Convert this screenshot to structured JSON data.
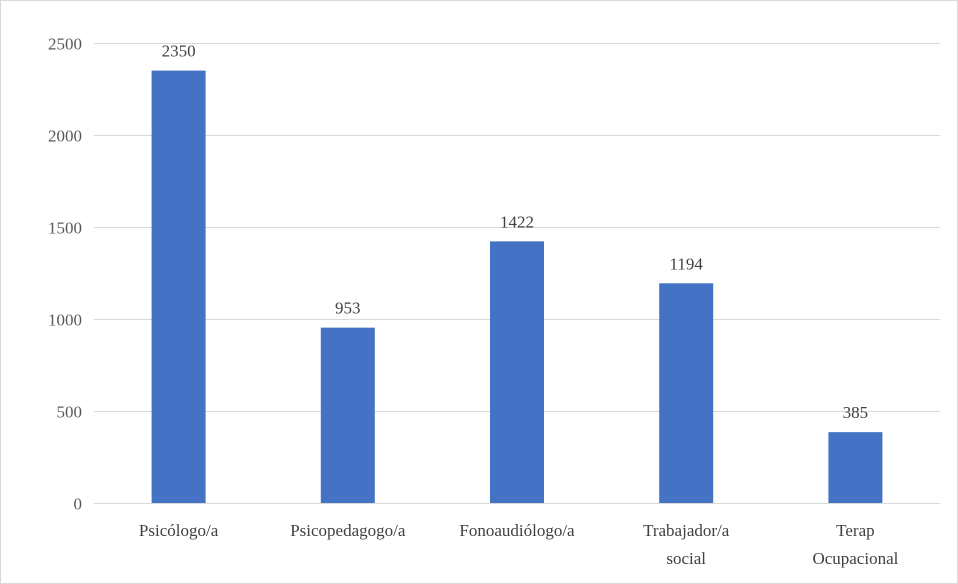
{
  "chart_data": {
    "type": "bar",
    "categories": [
      [
        "Psicólogo/a"
      ],
      [
        "Psicopedagogo/a"
      ],
      [
        "Fonoaudiólogo/a"
      ],
      [
        "Trabajador/a",
        "social"
      ],
      [
        "Terap",
        "Ocupacional"
      ]
    ],
    "values": [
      2350,
      953,
      1422,
      1194,
      385
    ],
    "ylim": [
      0,
      2500
    ],
    "yticks": [
      0,
      500,
      1000,
      1500,
      2000,
      2500
    ],
    "grid": true,
    "bar_color": "#4472c4",
    "gridline_color": "#d9d9d9",
    "title": "",
    "xlabel": "",
    "ylabel": ""
  }
}
